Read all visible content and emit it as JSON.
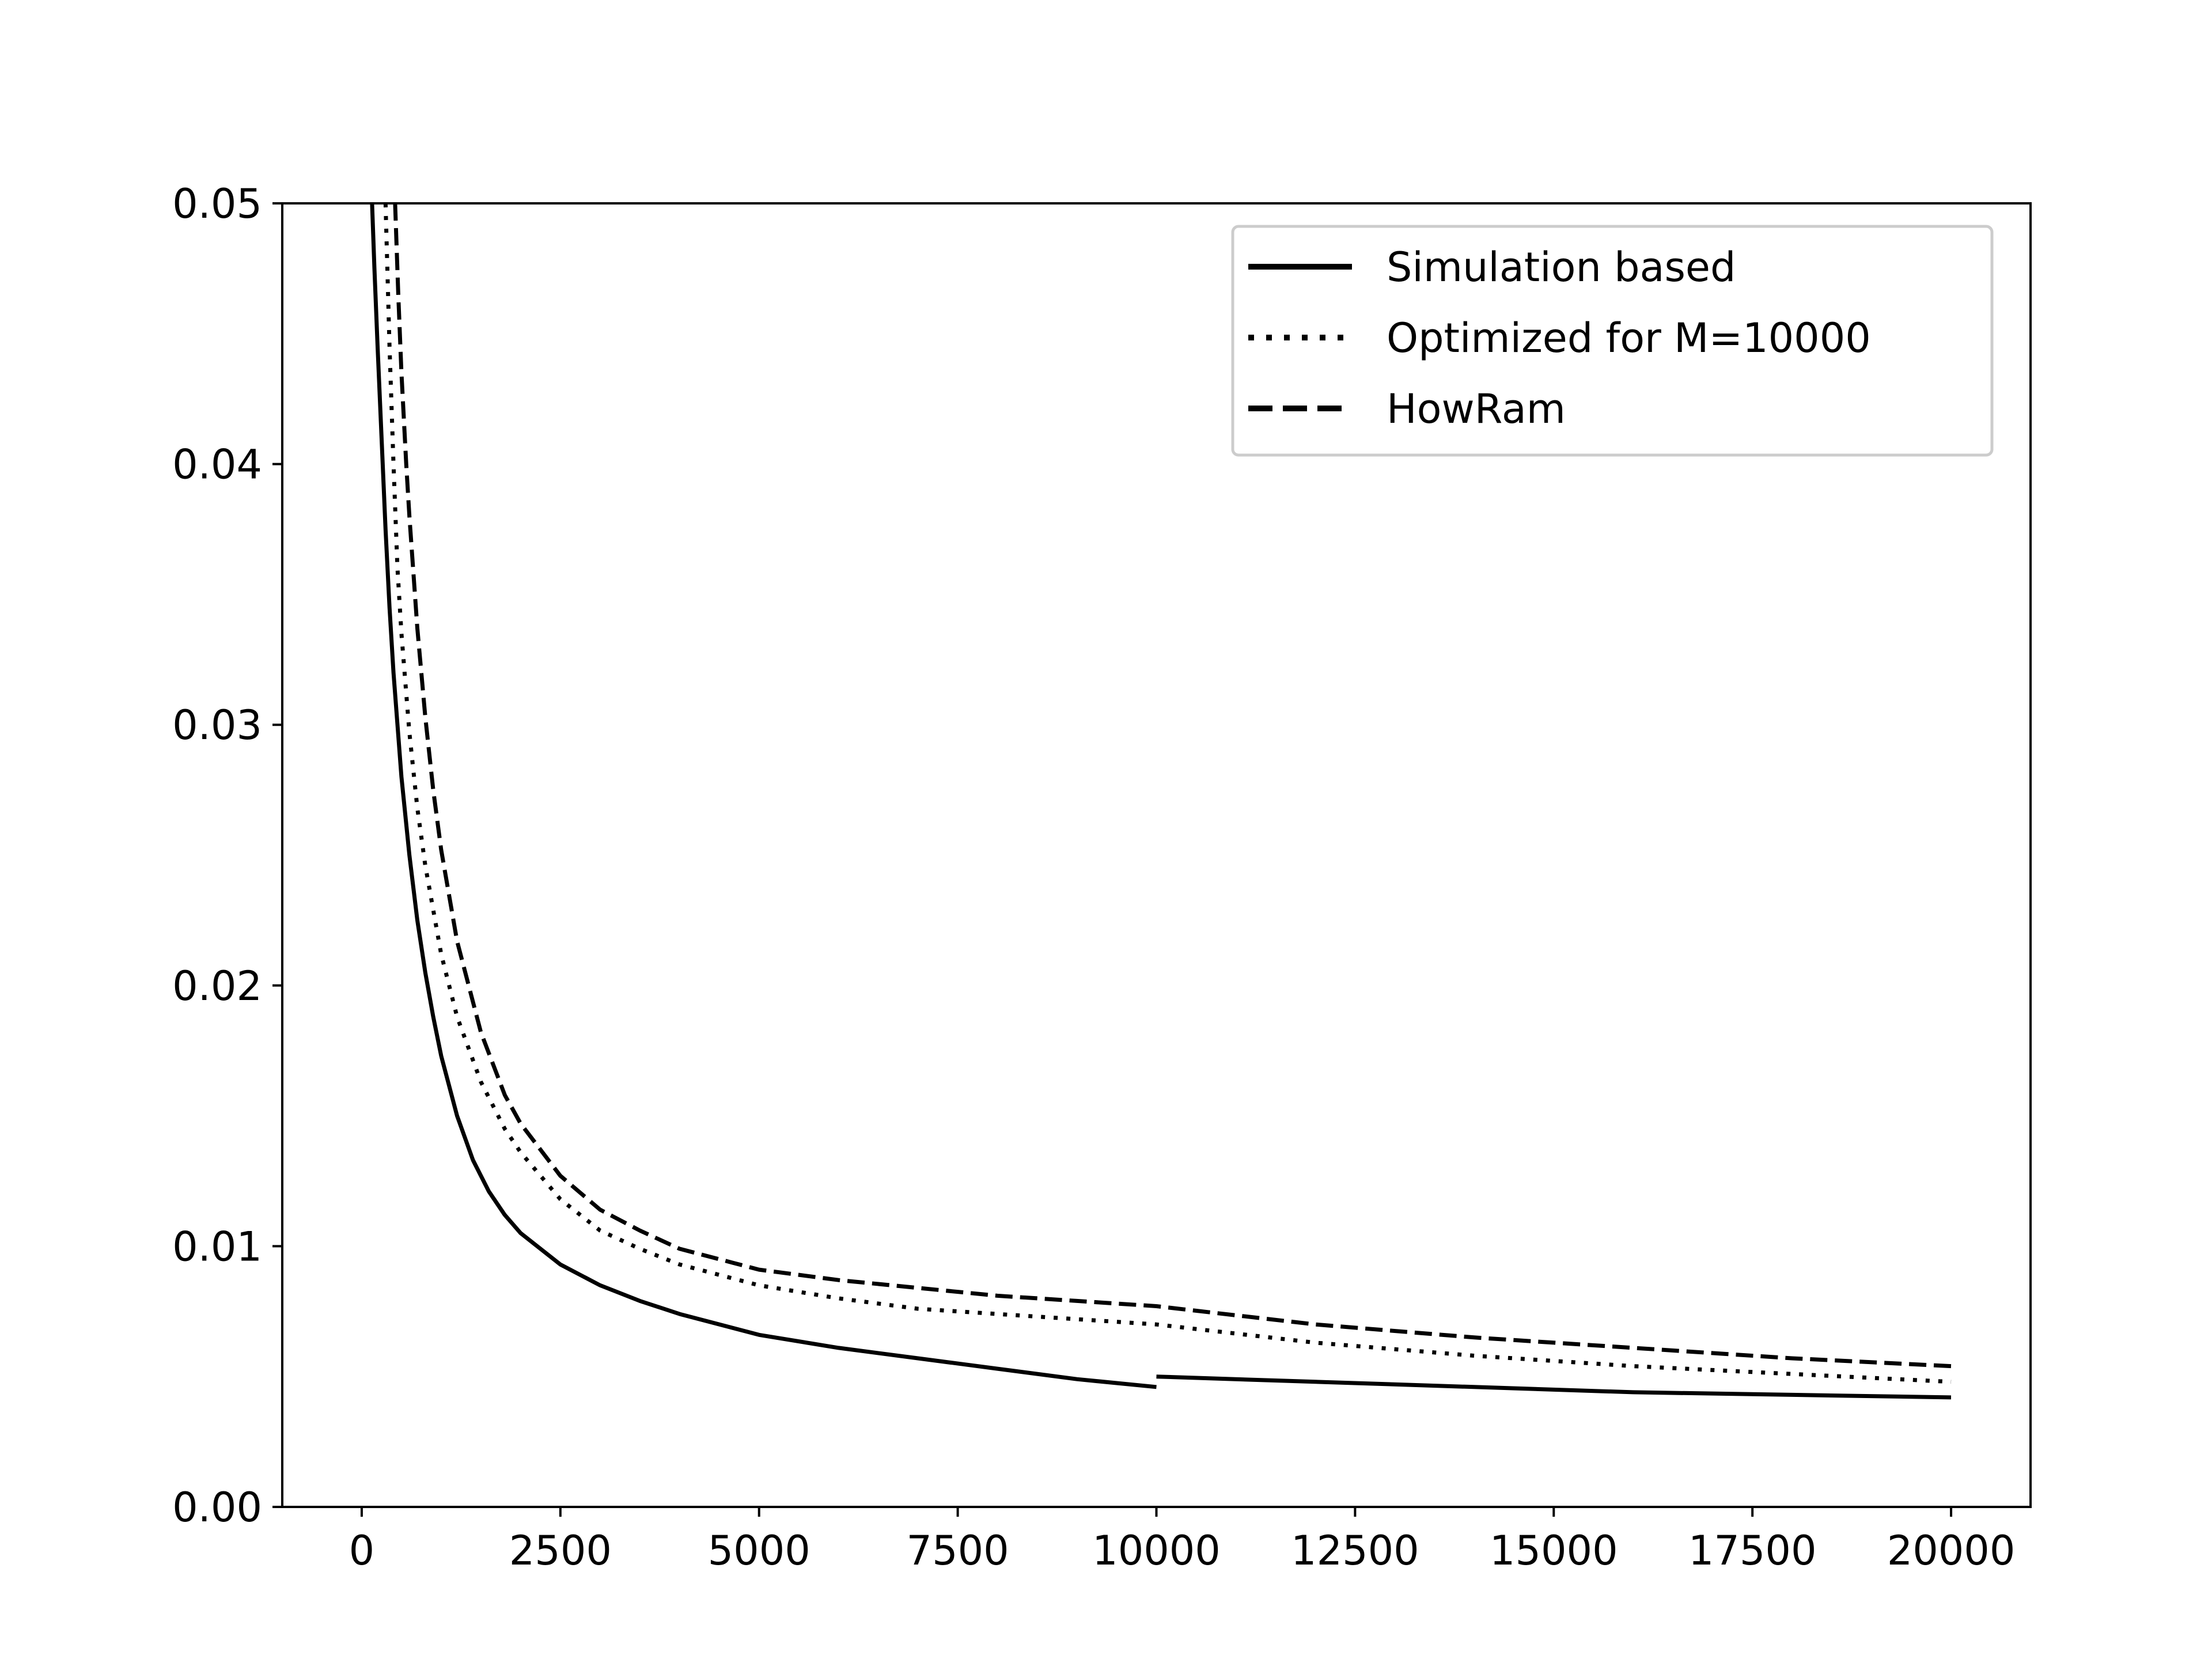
{
  "chart_data": {
    "type": "line",
    "title": "",
    "xlabel": "",
    "ylabel": "",
    "xlim": [
      -1000,
      21000
    ],
    "ylim": [
      0,
      0.05
    ],
    "xticks": [
      0,
      2500,
      5000,
      7500,
      10000,
      12500,
      15000,
      17500,
      20000
    ],
    "xtick_labels": [
      "0",
      "2500",
      "5000",
      "7500",
      "10000",
      "12500",
      "15000",
      "17500",
      "20000"
    ],
    "yticks": [
      0,
      0.01,
      0.02,
      0.03,
      0.04,
      0.05
    ],
    "ytick_labels": [
      "0.00",
      "0.01",
      "0.02",
      "0.03",
      "0.04",
      "0.05"
    ],
    "grid": false,
    "legend_position": "top-right",
    "series": [
      {
        "name": "Simulation based",
        "style": "solid",
        "color": "#000000",
        "segments": [
          {
            "x": [
              130,
              160,
              200,
              250,
              300,
              350,
              400,
              500,
              600,
              700,
              800,
              900,
              1000,
              1200,
              1400,
              1600,
              1800,
              2000,
              2500,
              3000,
              3500,
              4000,
              5000,
              6000,
              7000,
              8000,
              9000,
              10000
            ],
            "y": [
              0.05,
              0.0475,
              0.0445,
              0.041,
              0.0375,
              0.0345,
              0.032,
              0.028,
              0.025,
              0.0225,
              0.0205,
              0.0188,
              0.0173,
              0.015,
              0.0133,
              0.0121,
              0.0112,
              0.0105,
              0.0093,
              0.0085,
              0.0079,
              0.0074,
              0.0066,
              0.0061,
              0.0057,
              0.0053,
              0.0049,
              0.0046
            ]
          },
          {
            "x": [
              10000,
              12000,
              14000,
              16000,
              18000,
              20000
            ],
            "y": [
              0.005,
              0.0048,
              0.0046,
              0.0044,
              0.0043,
              0.0042
            ]
          }
        ]
      },
      {
        "name": "Optimized for M=10000",
        "style": "dotted",
        "color": "#000000",
        "segments": [
          {
            "x": [
              300,
              350,
              400,
              450,
              500,
              600,
              700,
              800,
              1000,
              1200,
              1500,
              1800,
              2000,
              2500,
              3000,
              3500,
              4000,
              5000,
              6000,
              7000,
              8000,
              9000,
              10000,
              12000,
              14000,
              16000,
              18000,
              20000
            ],
            "y": [
              0.05,
              0.0445,
              0.04,
              0.036,
              0.0335,
              0.0297,
              0.0268,
              0.0246,
              0.0212,
              0.0188,
              0.0163,
              0.0145,
              0.0136,
              0.0118,
              0.0106,
              0.0099,
              0.0093,
              0.0085,
              0.008,
              0.0076,
              0.0074,
              0.0072,
              0.007,
              0.0063,
              0.0058,
              0.0054,
              0.0051,
              0.0048
            ]
          }
        ]
      },
      {
        "name": "HowRam",
        "style": "dashed",
        "color": "#000000",
        "segments": [
          {
            "x": [
              420,
              460,
              500,
              560,
              600,
              700,
              800,
              900,
              1000,
              1200,
              1500,
              1800,
              2000,
              2500,
              3000,
              3500,
              4000,
              5000,
              6000,
              7000,
              8000,
              9000,
              10000,
              12000,
              14000,
              16000,
              18000,
              20000
            ],
            "y": [
              0.05,
              0.0465,
              0.0435,
              0.04,
              0.038,
              0.0337,
              0.0303,
              0.0275,
              0.0252,
              0.0217,
              0.0182,
              0.0158,
              0.0147,
              0.0127,
              0.0114,
              0.0106,
              0.0099,
              0.0091,
              0.0087,
              0.0084,
              0.0081,
              0.0079,
              0.0077,
              0.007,
              0.0065,
              0.0061,
              0.0057,
              0.0054
            ]
          }
        ]
      }
    ]
  }
}
